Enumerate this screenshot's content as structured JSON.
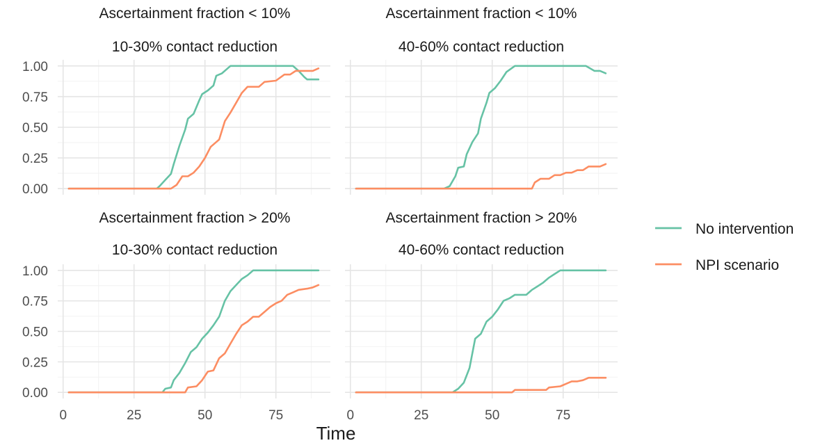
{
  "chart_data": {
    "type": "line",
    "xlabel": "Time",
    "ylabel": "",
    "xlim": [
      0,
      90
    ],
    "ylim": [
      0,
      1
    ],
    "x_ticks": [
      0,
      25,
      50,
      75
    ],
    "y_ticks": [
      0,
      0.25,
      0.5,
      0.75,
      1.0
    ],
    "y_tick_labels": [
      "0.00",
      "0.25",
      "0.50",
      "0.75",
      "1.00"
    ],
    "grid": true,
    "legend_position": "right",
    "legend": [
      {
        "name": "No intervention",
        "color": "#66c2a5"
      },
      {
        "name": "NPI scenario",
        "color": "#fc8d62"
      }
    ],
    "panels": [
      {
        "strip_top": "Ascertainment fraction < 10%",
        "strip_bottom": "10-30% contact reduction",
        "series": [
          {
            "name": "No intervention",
            "color": "#66c2a5",
            "points": [
              [
                2,
                0
              ],
              [
                33,
                0
              ],
              [
                34,
                0.02
              ],
              [
                36,
                0.07
              ],
              [
                38,
                0.12
              ],
              [
                39,
                0.2
              ],
              [
                41,
                0.35
              ],
              [
                43,
                0.48
              ],
              [
                44,
                0.57
              ],
              [
                46,
                0.61
              ],
              [
                48,
                0.72
              ],
              [
                49,
                0.77
              ],
              [
                51,
                0.8
              ],
              [
                53,
                0.84
              ],
              [
                54,
                0.92
              ],
              [
                56,
                0.94
              ],
              [
                58,
                0.98
              ],
              [
                59,
                1.0
              ],
              [
                81,
                1.0
              ],
              [
                83,
                0.96
              ],
              [
                85,
                0.91
              ],
              [
                86,
                0.89
              ],
              [
                90,
                0.89
              ]
            ]
          },
          {
            "name": "NPI scenario",
            "color": "#fc8d62",
            "points": [
              [
                2,
                0
              ],
              [
                38,
                0
              ],
              [
                40,
                0.03
              ],
              [
                42,
                0.1
              ],
              [
                44,
                0.1
              ],
              [
                46,
                0.13
              ],
              [
                48,
                0.18
              ],
              [
                50,
                0.25
              ],
              [
                52,
                0.34
              ],
              [
                54,
                0.38
              ],
              [
                55,
                0.4
              ],
              [
                57,
                0.55
              ],
              [
                59,
                0.62
              ],
              [
                61,
                0.7
              ],
              [
                63,
                0.78
              ],
              [
                65,
                0.83
              ],
              [
                69,
                0.83
              ],
              [
                71,
                0.87
              ],
              [
                75,
                0.88
              ],
              [
                78,
                0.93
              ],
              [
                80,
                0.93
              ],
              [
                82,
                0.96
              ],
              [
                88,
                0.96
              ],
              [
                90,
                0.98
              ]
            ]
          }
        ]
      },
      {
        "strip_top": "Ascertainment fraction < 10%",
        "strip_bottom": "40-60% contact reduction",
        "series": [
          {
            "name": "No intervention",
            "color": "#66c2a5",
            "points": [
              [
                2,
                0
              ],
              [
                33,
                0
              ],
              [
                35,
                0.02
              ],
              [
                37,
                0.1
              ],
              [
                38,
                0.17
              ],
              [
                40,
                0.18
              ],
              [
                41,
                0.28
              ],
              [
                43,
                0.38
              ],
              [
                45,
                0.45
              ],
              [
                46,
                0.57
              ],
              [
                48,
                0.7
              ],
              [
                49,
                0.78
              ],
              [
                51,
                0.82
              ],
              [
                53,
                0.88
              ],
              [
                55,
                0.95
              ],
              [
                58,
                1.0
              ],
              [
                83,
                1.0
              ],
              [
                86,
                0.96
              ],
              [
                88,
                0.96
              ],
              [
                90,
                0.94
              ]
            ]
          },
          {
            "name": "NPI scenario",
            "color": "#fc8d62",
            "points": [
              [
                2,
                0
              ],
              [
                64,
                0
              ],
              [
                65,
                0.05
              ],
              [
                67,
                0.08
              ],
              [
                70,
                0.08
              ],
              [
                72,
                0.11
              ],
              [
                74,
                0.11
              ],
              [
                76,
                0.13
              ],
              [
                78,
                0.13
              ],
              [
                80,
                0.15
              ],
              [
                82,
                0.15
              ],
              [
                84,
                0.18
              ],
              [
                88,
                0.18
              ],
              [
                90,
                0.2
              ]
            ]
          }
        ]
      },
      {
        "strip_top": "Ascertainment fraction > 20%",
        "strip_bottom": "10-30% contact reduction",
        "series": [
          {
            "name": "No intervention",
            "color": "#66c2a5",
            "points": [
              [
                2,
                0
              ],
              [
                35,
                0
              ],
              [
                36,
                0.03
              ],
              [
                38,
                0.04
              ],
              [
                39,
                0.1
              ],
              [
                41,
                0.16
              ],
              [
                43,
                0.24
              ],
              [
                45,
                0.33
              ],
              [
                47,
                0.37
              ],
              [
                49,
                0.44
              ],
              [
                51,
                0.49
              ],
              [
                53,
                0.55
              ],
              [
                55,
                0.62
              ],
              [
                57,
                0.75
              ],
              [
                59,
                0.83
              ],
              [
                61,
                0.88
              ],
              [
                63,
                0.93
              ],
              [
                65,
                0.96
              ],
              [
                67,
                1.0
              ],
              [
                90,
                1.0
              ]
            ]
          },
          {
            "name": "NPI scenario",
            "color": "#fc8d62",
            "points": [
              [
                2,
                0
              ],
              [
                43,
                0
              ],
              [
                44,
                0.04
              ],
              [
                47,
                0.05
              ],
              [
                49,
                0.1
              ],
              [
                51,
                0.17
              ],
              [
                53,
                0.18
              ],
              [
                55,
                0.28
              ],
              [
                57,
                0.32
              ],
              [
                59,
                0.4
              ],
              [
                61,
                0.48
              ],
              [
                63,
                0.55
              ],
              [
                65,
                0.58
              ],
              [
                67,
                0.62
              ],
              [
                69,
                0.62
              ],
              [
                71,
                0.66
              ],
              [
                73,
                0.7
              ],
              [
                75,
                0.73
              ],
              [
                77,
                0.75
              ],
              [
                79,
                0.8
              ],
              [
                81,
                0.82
              ],
              [
                83,
                0.84
              ],
              [
                86,
                0.85
              ],
              [
                88,
                0.86
              ],
              [
                90,
                0.88
              ]
            ]
          }
        ]
      },
      {
        "strip_top": "Ascertainment fraction > 20%",
        "strip_bottom": "40-60% contact reduction",
        "series": [
          {
            "name": "No intervention",
            "color": "#66c2a5",
            "points": [
              [
                2,
                0
              ],
              [
                36,
                0
              ],
              [
                38,
                0.03
              ],
              [
                40,
                0.08
              ],
              [
                42,
                0.2
              ],
              [
                44,
                0.44
              ],
              [
                46,
                0.48
              ],
              [
                48,
                0.58
              ],
              [
                50,
                0.62
              ],
              [
                52,
                0.68
              ],
              [
                54,
                0.75
              ],
              [
                56,
                0.77
              ],
              [
                58,
                0.8
              ],
              [
                62,
                0.8
              ],
              [
                64,
                0.84
              ],
              [
                66,
                0.87
              ],
              [
                68,
                0.9
              ],
              [
                70,
                0.94
              ],
              [
                72,
                0.97
              ],
              [
                74,
                1.0
              ],
              [
                90,
                1.0
              ]
            ]
          },
          {
            "name": "NPI scenario",
            "color": "#fc8d62",
            "points": [
              [
                2,
                0
              ],
              [
                57,
                0
              ],
              [
                58,
                0.02
              ],
              [
                69,
                0.02
              ],
              [
                70,
                0.04
              ],
              [
                74,
                0.05
              ],
              [
                76,
                0.07
              ],
              [
                78,
                0.09
              ],
              [
                80,
                0.09
              ],
              [
                82,
                0.1
              ],
              [
                84,
                0.12
              ],
              [
                90,
                0.12
              ]
            ]
          }
        ]
      }
    ]
  }
}
